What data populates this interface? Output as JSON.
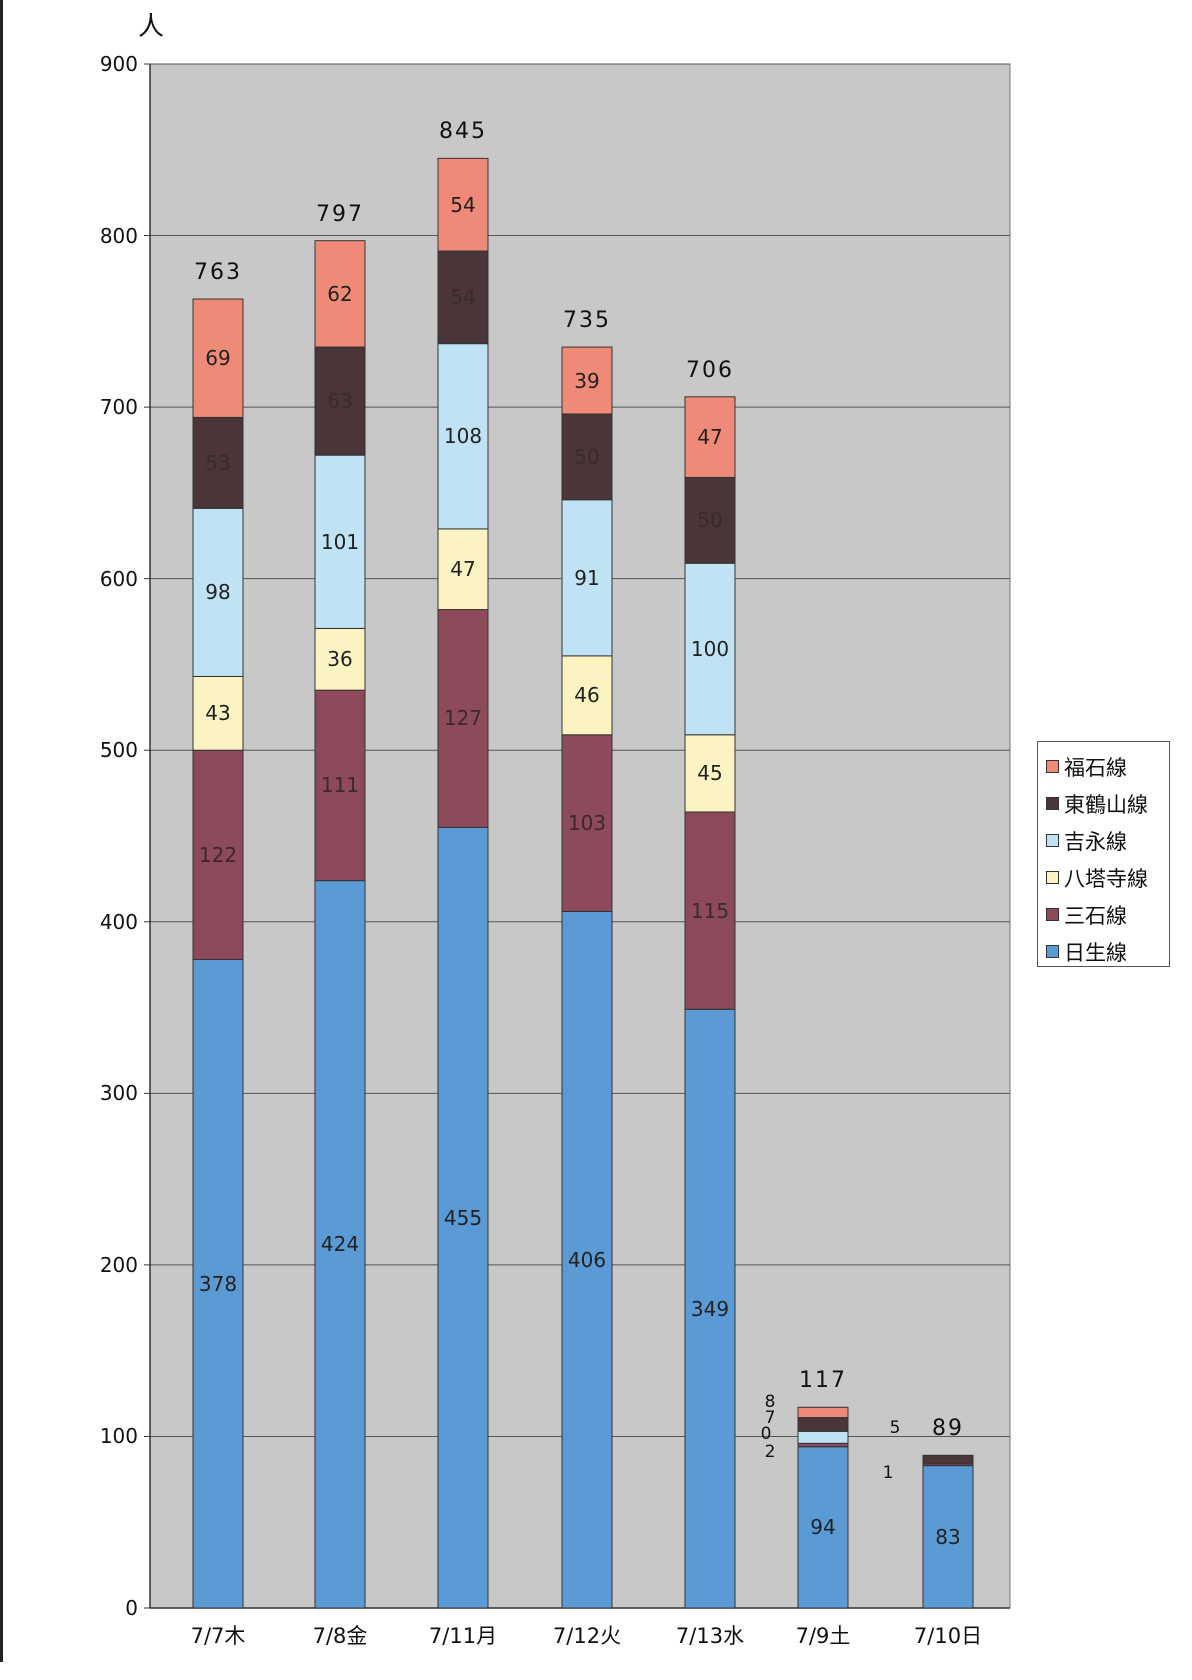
{
  "chart_data": {
    "type": "bar",
    "stacked": true,
    "title": "",
    "xlabel": "",
    "ylabel": "人",
    "ylim": [
      0,
      900
    ],
    "yticks": [
      0,
      100,
      200,
      300,
      400,
      500,
      600,
      700,
      800,
      900
    ],
    "grid": true,
    "legend_position": "right",
    "categories": [
      "7/7木",
      "7/8金",
      "7/11月",
      "7/12火",
      "7/13水",
      "7/9土",
      "7/10日"
    ],
    "totals": [
      763,
      797,
      845,
      735,
      706,
      117,
      89
    ],
    "series": [
      {
        "name": "日生線",
        "color": "#5b9bd5",
        "values": [
          378,
          424,
          455,
          406,
          349,
          94,
          83
        ]
      },
      {
        "name": "三石線",
        "color": "#8c4a5a",
        "values": [
          122,
          111,
          127,
          103,
          115,
          2,
          1
        ]
      },
      {
        "name": "八塔寺線",
        "color": "#fbf3c2",
        "values": [
          43,
          36,
          47,
          46,
          45,
          0,
          0
        ]
      },
      {
        "name": "吉永線",
        "color": "#bfe3f5",
        "values": [
          98,
          101,
          108,
          91,
          100,
          7,
          0
        ]
      },
      {
        "name": "東鶴山線",
        "color": "#4a3538",
        "values": [
          53,
          63,
          54,
          50,
          50,
          8,
          5
        ]
      },
      {
        "name": "福石線",
        "color": "#f08a78",
        "values": [
          69,
          62,
          54,
          39,
          47,
          6,
          0
        ]
      }
    ],
    "legend_order": [
      "福石線",
      "東鶴山線",
      "吉永線",
      "八塔寺線",
      "三石線",
      "日生線"
    ],
    "small_labels": [
      {
        "text": "8"
      },
      {
        "text": "7"
      },
      {
        "text": "0"
      },
      {
        "text": "2"
      },
      {
        "text": "5"
      },
      {
        "text": "1"
      }
    ],
    "plot_background": "#c8c8c8"
  }
}
